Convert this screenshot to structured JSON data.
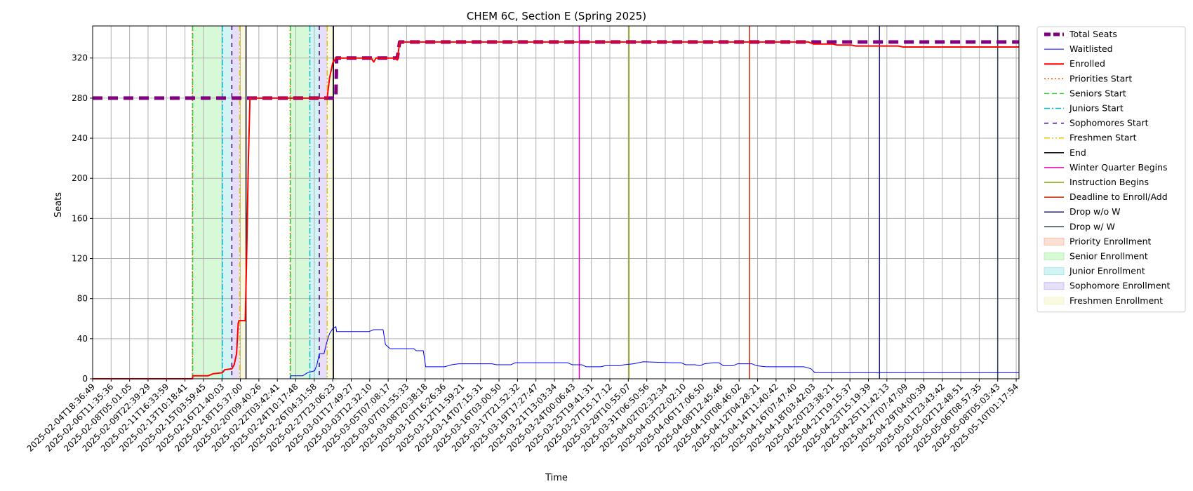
{
  "chart_data": {
    "type": "line",
    "title": "CHEM 6C, Section E (Spring 2025)",
    "xlabel": "Time",
    "ylabel": "Seats",
    "ylim": [
      0,
      352
    ],
    "yticks": [
      0,
      40,
      80,
      120,
      160,
      200,
      240,
      280,
      320
    ],
    "grid": true,
    "legend_position": "outside-right",
    "x_range": [
      "2025-02-04T18:36:49",
      "2025-05-13T18:00:00"
    ],
    "xticks": [
      "2025-02-04T18:36:49",
      "2025-02-06T11:35:36",
      "2025-02-08T05:01:05",
      "2025-02-09T22:39:29",
      "2025-02-11T16:33:59",
      "2025-02-13T10:18:41",
      "2025-02-15T03:59:45",
      "2025-02-16T21:40:03",
      "2025-02-18T15:37:00",
      "2025-02-20T09:40:26",
      "2025-02-22T03:42:41",
      "2025-02-24T10:17:48",
      "2025-02-26T04:31:58",
      "2025-02-27T23:06:23",
      "2025-03-01T17:49:27",
      "2025-03-03T12:32:10",
      "2025-03-05T07:08:17",
      "2025-03-07T01:55:33",
      "2025-03-08T20:38:18",
      "2025-03-10T16:26:36",
      "2025-03-12T11:59:21",
      "2025-03-14T07:15:31",
      "2025-03-16T03:00:50",
      "2025-03-17T21:52:32",
      "2025-03-19T17:27:47",
      "2025-03-21T13:03:34",
      "2025-03-24T00:06:43",
      "2025-03-25T19:41:31",
      "2025-03-27T15:17:12",
      "2025-03-29T10:55:07",
      "2025-03-31T06:50:56",
      "2025-04-02T02:32:34",
      "2025-04-03T22:02:10",
      "2025-04-06T17:06:50",
      "2025-04-08T12:45:46",
      "2025-04-10T08:46:02",
      "2025-04-12T04:28:21",
      "2025-04-14T11:40:42",
      "2025-04-16T07:47:40",
      "2025-04-18T03:42:03",
      "2025-04-20T23:38:21",
      "2025-04-21T19:15:37",
      "2025-04-23T15:19:39",
      "2025-04-25T11:42:13",
      "2025-04-27T07:47:09",
      "2025-04-29T04:00:39",
      "2025-05-01T23:43:42",
      "2025-05-02T12:48:51",
      "2025-05-06T08:57:35",
      "2025-05-08T05:03:43",
      "2025-05-10T01:17:54"
    ],
    "series": [
      {
        "name": "Total Seats",
        "color": "#800080",
        "style": "dashed",
        "width": 5,
        "points": [
          [
            "2025-02-04T18:36:49",
            280
          ],
          [
            "2025-03-02T12:00:00",
            280
          ],
          [
            "2025-03-02T14:00:00",
            320
          ],
          [
            "2025-03-09T00:00:00",
            320
          ],
          [
            "2025-03-09T06:00:00",
            336
          ],
          [
            "2025-05-13T18:00:00",
            336
          ]
        ]
      },
      {
        "name": "Waitlisted",
        "color": "#0000ff",
        "style": "solid",
        "width": 1,
        "points": [
          [
            "2025-02-04T18:36:49",
            0
          ],
          [
            "2025-02-25T16:00:00",
            0
          ],
          [
            "2025-02-25T18:00:00",
            3
          ],
          [
            "2025-02-27T00:00:00",
            3
          ],
          [
            "2025-02-27T12:00:00",
            6
          ],
          [
            "2025-02-28T06:00:00",
            8
          ],
          [
            "2025-02-28T12:00:00",
            14
          ],
          [
            "2025-02-28T18:00:00",
            25
          ],
          [
            "2025-03-01T06:00:00",
            25
          ],
          [
            "2025-03-01T12:00:00",
            35
          ],
          [
            "2025-03-01T20:00:00",
            45
          ],
          [
            "2025-03-02T04:00:00",
            50
          ],
          [
            "2025-03-02T12:00:00",
            52
          ],
          [
            "2025-03-02T14:00:00",
            47
          ],
          [
            "2025-03-06T00:00:00",
            47
          ],
          [
            "2025-03-06T12:00:00",
            49
          ],
          [
            "2025-03-07T12:00:00",
            49
          ],
          [
            "2025-03-07T18:00:00",
            34
          ],
          [
            "2025-03-08T06:00:00",
            30
          ],
          [
            "2025-03-10T18:00:00",
            30
          ],
          [
            "2025-03-11T00:00:00",
            28
          ],
          [
            "2025-03-11T18:00:00",
            28
          ],
          [
            "2025-03-12T00:00:00",
            12
          ],
          [
            "2025-03-14T00:00:00",
            12
          ],
          [
            "2025-03-14T18:00:00",
            14
          ],
          [
            "2025-03-15T12:00:00",
            15
          ],
          [
            "2025-03-19T00:00:00",
            15
          ],
          [
            "2025-03-19T12:00:00",
            14
          ],
          [
            "2025-03-21T00:00:00",
            14
          ],
          [
            "2025-03-21T12:00:00",
            16
          ],
          [
            "2025-03-27T00:00:00",
            16
          ],
          [
            "2025-03-27T12:00:00",
            14
          ],
          [
            "2025-03-28T12:00:00",
            14
          ],
          [
            "2025-03-29T00:00:00",
            12
          ],
          [
            "2025-03-30T12:00:00",
            12
          ],
          [
            "2025-03-31T00:00:00",
            13
          ],
          [
            "2025-04-01T12:00:00",
            13
          ],
          [
            "2025-04-02T00:00:00",
            14
          ],
          [
            "2025-04-03T00:00:00",
            15
          ],
          [
            "2025-04-04T00:00:00",
            17
          ],
          [
            "2025-04-07T00:00:00",
            16
          ],
          [
            "2025-04-08T00:00:00",
            16
          ],
          [
            "2025-04-08T12:00:00",
            14
          ],
          [
            "2025-04-09T12:00:00",
            14
          ],
          [
            "2025-04-10T00:00:00",
            13
          ],
          [
            "2025-04-10T12:00:00",
            15
          ],
          [
            "2025-04-11T12:00:00",
            16
          ],
          [
            "2025-04-12T00:00:00",
            16
          ],
          [
            "2025-04-12T12:00:00",
            13
          ],
          [
            "2025-04-13T12:00:00",
            13
          ],
          [
            "2025-04-14T00:00:00",
            15
          ],
          [
            "2025-04-15T12:00:00",
            15
          ],
          [
            "2025-04-16T00:00:00",
            13
          ],
          [
            "2025-04-17T00:00:00",
            12
          ],
          [
            "2025-04-21T00:00:00",
            12
          ],
          [
            "2025-04-21T18:00:00",
            10
          ],
          [
            "2025-04-22T04:00:00",
            6
          ],
          [
            "2025-05-13T18:00:00",
            6
          ]
        ]
      },
      {
        "name": "Enrolled",
        "color": "#ff0000",
        "style": "solid",
        "width": 2,
        "points": [
          [
            "2025-02-04T18:36:49",
            0
          ],
          [
            "2025-02-15T08:00:00",
            0
          ],
          [
            "2025-02-15T09:00:00",
            3
          ],
          [
            "2025-02-17T00:00:00",
            3
          ],
          [
            "2025-02-17T12:00:00",
            5
          ],
          [
            "2025-02-18T12:00:00",
            6
          ],
          [
            "2025-02-18T18:00:00",
            9
          ],
          [
            "2025-02-19T12:00:00",
            10
          ],
          [
            "2025-02-19T18:00:00",
            14
          ],
          [
            "2025-02-20T00:00:00",
            25
          ],
          [
            "2025-02-20T04:00:00",
            55
          ],
          [
            "2025-02-20T06:00:00",
            58
          ],
          [
            "2025-02-20T22:00:00",
            58
          ],
          [
            "2025-02-21T02:00:00",
            130
          ],
          [
            "2025-02-21T06:00:00",
            220
          ],
          [
            "2025-02-21T10:00:00",
            280
          ],
          [
            "2025-03-01T14:00:00",
            280
          ],
          [
            "2025-03-01T20:00:00",
            300
          ],
          [
            "2025-03-02T04:00:00",
            315
          ],
          [
            "2025-03-02T12:00:00",
            320
          ],
          [
            "2025-03-06T06:00:00",
            320
          ],
          [
            "2025-03-06T12:00:00",
            316
          ],
          [
            "2025-03-06T18:00:00",
            320
          ],
          [
            "2025-03-08T18:00:00",
            320
          ],
          [
            "2025-03-09T00:00:00",
            318
          ],
          [
            "2025-03-09T06:00:00",
            336
          ],
          [
            "2025-04-21T12:00:00",
            336
          ],
          [
            "2025-04-22T00:00:00",
            334
          ],
          [
            "2025-04-24T00:00:00",
            334
          ],
          [
            "2025-04-24T12:00:00",
            333
          ],
          [
            "2025-04-26T00:00:00",
            333
          ],
          [
            "2025-04-26T12:00:00",
            332
          ],
          [
            "2025-05-01T00:00:00",
            332
          ],
          [
            "2025-05-01T12:00:00",
            331
          ],
          [
            "2025-05-13T18:00:00",
            331
          ]
        ]
      }
    ],
    "vlines": [
      {
        "name": "Priorities Start",
        "style": "dotted",
        "color": "#ff4500",
        "x": [
          "2025-02-15T08:00:00",
          "2025-02-25T16:00:00"
        ]
      },
      {
        "name": "Seniors Start",
        "style": "dashed",
        "color": "#32cd32",
        "x": [
          "2025-02-15T08:30:00",
          "2025-02-25T16:30:00"
        ]
      },
      {
        "name": "Juniors Start",
        "style": "dashdot",
        "color": "#00bcd4",
        "x": [
          "2025-02-18T12:00:00",
          "2025-02-27T18:00:00"
        ]
      },
      {
        "name": "Sophomores Start",
        "style": "loosedash",
        "color": "#4b0082",
        "x": [
          "2025-02-19T12:00:00",
          "2025-02-28T18:00:00"
        ]
      },
      {
        "name": "Freshmen Start",
        "style": "dashdotdot",
        "color": "#e6c200",
        "x": [
          "2025-02-20T08:00:00",
          "2025-03-01T14:00:00"
        ]
      },
      {
        "name": "End",
        "style": "solid",
        "color": "#000000",
        "x": [
          "2025-02-21T00:00:00",
          "2025-03-02T06:00:00"
        ]
      },
      {
        "name": "Winter Quarter Begins",
        "style": "solid",
        "color": "#e600b8",
        "x": [
          "2025-03-28T06:00:00"
        ]
      },
      {
        "name": "Instruction Begins",
        "style": "solid",
        "color": "#7fa600",
        "x": [
          "2025-04-02T12:00:00"
        ]
      },
      {
        "name": "Deadline to Enroll/Add",
        "style": "solid",
        "color": "#cc2200",
        "x": [
          "2025-04-15T06:00:00"
        ]
      },
      {
        "name": "Drop w/o W",
        "style": "solid",
        "color": "#191970",
        "x": [
          "2025-04-29T00:00:00"
        ]
      },
      {
        "name": "Drop w/ W",
        "style": "solid",
        "color": "#2f3f4f",
        "x": [
          "2025-05-11T12:00:00"
        ]
      }
    ],
    "spans": [
      {
        "name": "Priority Enrollment",
        "color": "#f4a582",
        "ranges": [
          [
            "2025-02-15T08:00:00",
            "2025-02-15T08:30:00"
          ],
          [
            "2025-02-25T16:00:00",
            "2025-02-25T16:30:00"
          ]
        ]
      },
      {
        "name": "Senior Enrollment",
        "color": "#90ee90",
        "ranges": [
          [
            "2025-02-15T08:30:00",
            "2025-02-18T12:00:00"
          ],
          [
            "2025-02-25T16:30:00",
            "2025-02-27T18:00:00"
          ]
        ]
      },
      {
        "name": "Junior Enrollment",
        "color": "#7fdfdf",
        "ranges": [
          [
            "2025-02-18T12:00:00",
            "2025-02-19T12:00:00"
          ],
          [
            "2025-02-27T18:00:00",
            "2025-02-28T18:00:00"
          ]
        ]
      },
      {
        "name": "Sophomore Enrollment",
        "color": "#b9a0f0",
        "ranges": [
          [
            "2025-02-19T12:00:00",
            "2025-02-20T08:00:00"
          ],
          [
            "2025-02-28T18:00:00",
            "2025-03-01T14:00:00"
          ]
        ]
      },
      {
        "name": "Freshmen Enrollment",
        "color": "#f0f0b0",
        "ranges": [
          [
            "2025-02-20T08:00:00",
            "2025-02-21T00:00:00"
          ],
          [
            "2025-03-01T14:00:00",
            "2025-03-02T06:00:00"
          ]
        ]
      }
    ]
  }
}
